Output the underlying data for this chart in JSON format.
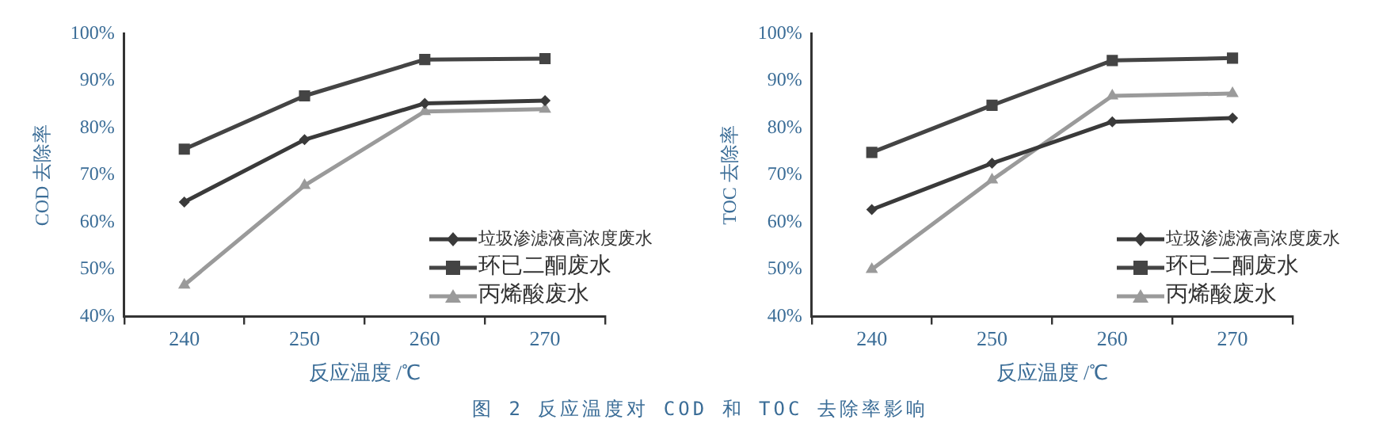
{
  "chart_data": [
    {
      "type": "line",
      "ylabel": "COD 去除率",
      "xlabel": "反应温度 /℃",
      "categories": [
        "240",
        "250",
        "260",
        "270"
      ],
      "series": [
        {
          "name": "垃圾渗滤液高浓度废水",
          "color": "#3a3a3a",
          "marker": "diamond",
          "values": [
            64.3,
            77.5,
            85.2,
            85.8
          ]
        },
        {
          "name": "环已二酮废水",
          "color": "#444444",
          "marker": "square",
          "values": [
            75.5,
            86.8,
            94.5,
            94.7
          ]
        },
        {
          "name": "丙烯酸废水",
          "color": "#9a9a9a",
          "marker": "triangle",
          "values": [
            46.7,
            67.8,
            83.5,
            84.0
          ]
        }
      ],
      "ylim": [
        40,
        100
      ],
      "yticks": [
        {
          "value": 40,
          "label": "40%"
        },
        {
          "value": 50,
          "label": "50%"
        },
        {
          "value": 60,
          "label": "60%"
        },
        {
          "value": 70,
          "label": "70%"
        },
        {
          "value": 80,
          "label": "80%"
        },
        {
          "value": 90,
          "label": "90%"
        },
        {
          "value": 100,
          "label": "100%"
        }
      ],
      "grid": false,
      "legend": "bottom right",
      "annotations": [
        "图 2 反应温度对 COD 和 TOC 去除率影响"
      ]
    },
    {
      "type": "line",
      "ylabel": "TOC 去除率",
      "xlabel": "反应温度 /℃",
      "categories": [
        "240",
        "250",
        "260",
        "270"
      ],
      "series": [
        {
          "name": "垃圾渗滤液高浓度废水",
          "color": "#3a3a3a",
          "marker": "diamond",
          "values": [
            62.7,
            72.5,
            81.3,
            82.1
          ]
        },
        {
          "name": "环已二酮废水",
          "color": "#444444",
          "marker": "square",
          "values": [
            74.8,
            84.8,
            94.3,
            94.8
          ]
        },
        {
          "name": "丙烯酸废水",
          "color": "#9a9a9a",
          "marker": "triangle",
          "values": [
            50.0,
            69.0,
            86.8,
            87.3
          ]
        }
      ],
      "ylim": [
        40,
        100
      ],
      "yticks": [
        {
          "value": 40,
          "label": "40%"
        },
        {
          "value": 50,
          "label": "50%"
        },
        {
          "value": 60,
          "label": "60%"
        },
        {
          "value": 70,
          "label": "70%"
        },
        {
          "value": 80,
          "label": "80%"
        },
        {
          "value": 90,
          "label": "90%"
        },
        {
          "value": 100,
          "label": "100%"
        }
      ],
      "grid": false,
      "legend": "bottom right"
    }
  ]
}
